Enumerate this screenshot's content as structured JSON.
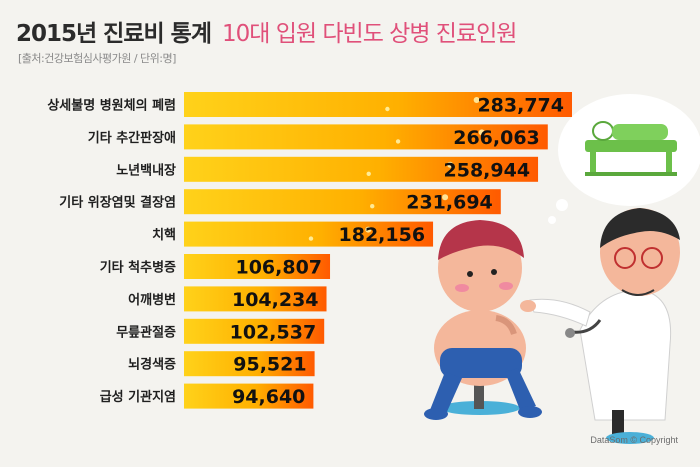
{
  "header": {
    "title_main": "2015년 진료비 통계",
    "title_sub": "10대 입원 다빈도 상병 진료인원",
    "source": "[출처:건강보험심사평가원 / 단위:명]"
  },
  "credit": "DataSom © Copyright",
  "colors": {
    "bar_start": "#ffd21a",
    "bar_end": "#ff5a00",
    "sparkle": "#fff6b0",
    "label": "#1f1f1f"
  },
  "chart_data": {
    "type": "bar",
    "orientation": "horizontal",
    "title": "2015년 진료비 통계 10대 입원 다빈도 상병 진료인원",
    "categories": [
      "상세불명 병원체의 폐렴",
      "기타 추간판장애",
      "노년백내장",
      "기타 위장염및 결장염",
      "치핵",
      "기타 척추병증",
      "어깨병변",
      "무릎관절증",
      "뇌경색증",
      "급성 기관지염"
    ],
    "values": [
      283774,
      266063,
      258944,
      231694,
      182156,
      106807,
      104234,
      102537,
      95521,
      94640
    ],
    "value_labels": [
      "283,774",
      "266,063",
      "258,944",
      "231,694",
      "182,156",
      "106,807",
      "104,234",
      "102,537",
      "95,521",
      "94,640"
    ],
    "xlim": [
      0,
      283774
    ],
    "grid": false,
    "legend": "none"
  }
}
